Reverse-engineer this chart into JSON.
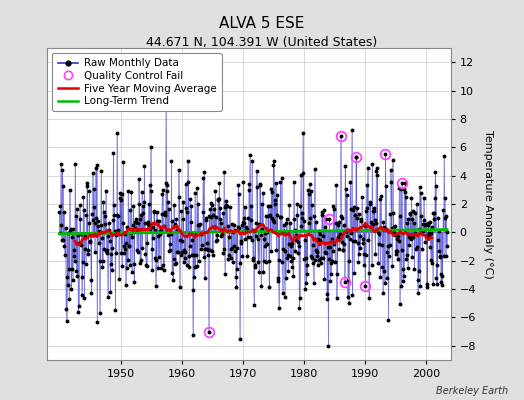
{
  "title": "ALVA 5 ESE",
  "subtitle": "44.671 N, 104.391 W (United States)",
  "ylabel": "Temperature Anomaly (°C)",
  "watermark": "Berkeley Earth",
  "start_year": 1940,
  "end_year": 2003,
  "xlim": [
    1938,
    2004
  ],
  "ylim": [
    -9,
    13
  ],
  "yticks": [
    -8,
    -6,
    -4,
    -2,
    0,
    2,
    4,
    6,
    8,
    10,
    12
  ],
  "xticks": [
    1950,
    1960,
    1970,
    1980,
    1990,
    2000
  ],
  "fig_bg_color": "#e0e0e0",
  "plot_bg_color": "#ffffff",
  "raw_line_color": "#3333cc",
  "raw_dot_color": "#000000",
  "moving_avg_color": "#dd0000",
  "trend_color": "#00bb00",
  "qc_fail_color": "#ff44ff",
  "grid_color": "#cccccc",
  "seed": 42,
  "n_months": 762,
  "qc_fail_indices": [
    293,
    530,
    560,
    582,
    600,
    640,
    672
  ],
  "title_fontsize": 11,
  "subtitle_fontsize": 9,
  "label_fontsize": 8,
  "tick_fontsize": 8,
  "legend_fontsize": 7.5
}
